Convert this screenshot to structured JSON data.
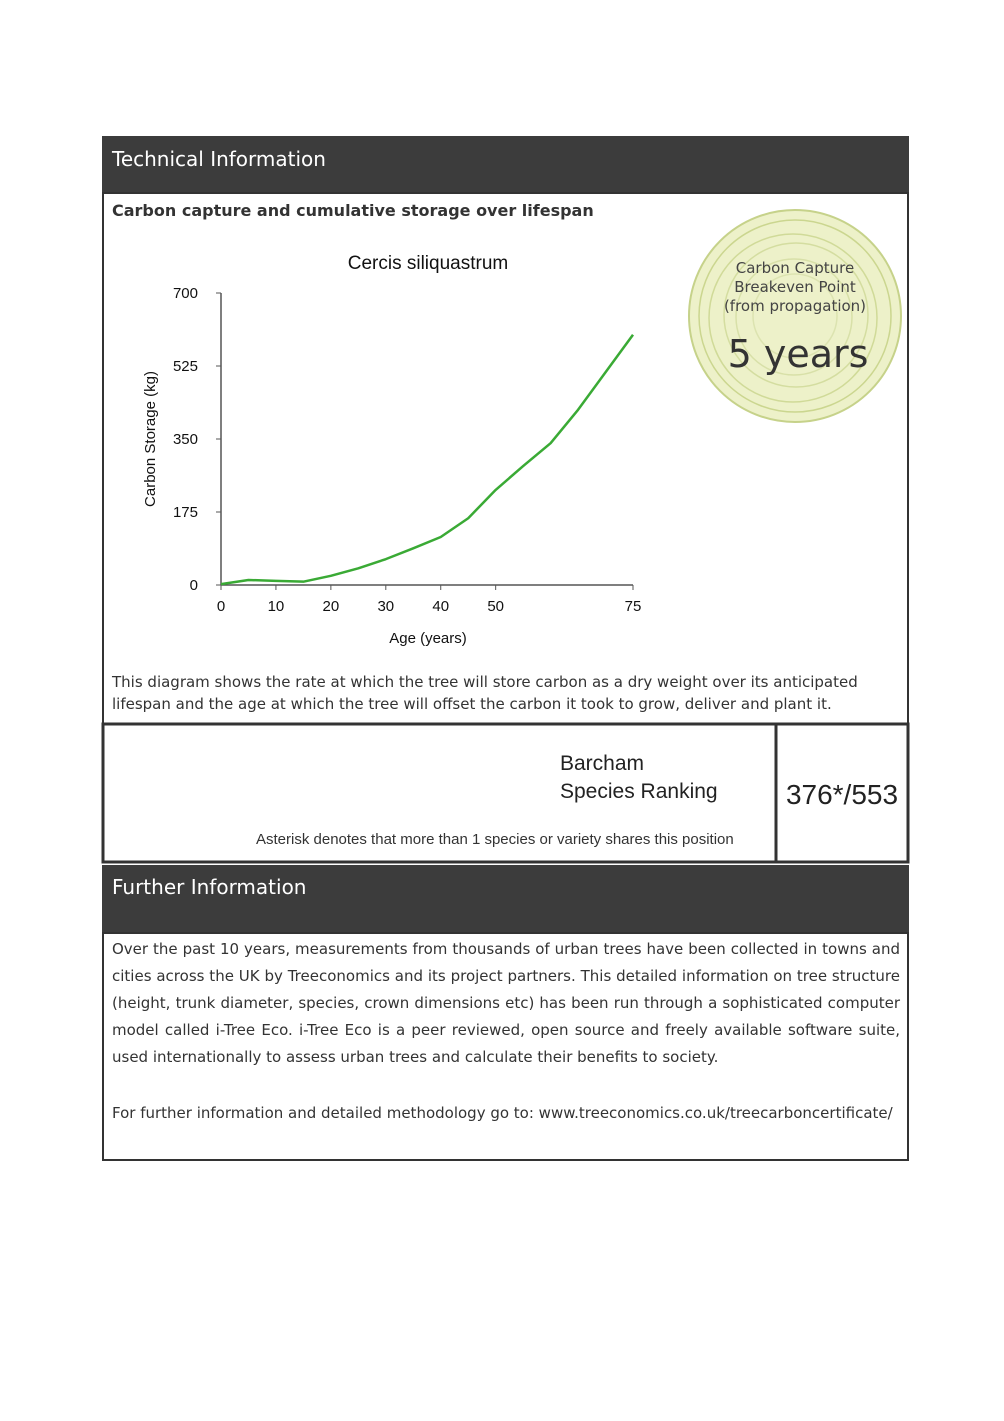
{
  "header": {
    "title": "Technical Information"
  },
  "subtitle": "Carbon capture and cumulative storage over lifespan",
  "chart_data": {
    "type": "line",
    "title": "Cercis siliquastrum",
    "x_label": "Age (years)",
    "y_label": "Carbon Storage (kg)",
    "x": [
      0,
      5,
      10,
      15,
      20,
      25,
      30,
      35,
      40,
      45,
      50,
      55,
      60,
      65,
      70,
      75
    ],
    "values": [
      2,
      12,
      10,
      8,
      22,
      40,
      62,
      88,
      115,
      160,
      228,
      285,
      340,
      420,
      510,
      600
    ],
    "color": "#3aaa35",
    "xlim": [
      0,
      75
    ],
    "xticks": [
      0,
      10,
      20,
      30,
      40,
      50,
      75
    ],
    "ylim": [
      0,
      700
    ],
    "yticks": [
      0,
      175,
      350,
      525,
      700
    ],
    "grid": false
  },
  "badge": {
    "label": [
      "Carbon Capture",
      "Breakeven Point",
      "(from propagation)"
    ],
    "value": "5 years"
  },
  "description": "This diagram shows the rate at which the tree will store carbon as a dry weight over its anticipated lifespan and the age at which the tree will offset the carbon it took to grow, deliver and plant it.",
  "ranking": {
    "label": [
      "Barcham",
      "Species Ranking"
    ],
    "value": "376*/553",
    "note": "Asterisk denotes that more than 1 species or variety shares this position"
  },
  "further": {
    "title": "Further Information",
    "paragraphs": [
      "Over the past 10 years, measurements from thousands of urban trees have been collected in towns and cities across the UK by Treeconomics and its project partners. This detailed information on tree structure (height, trunk diameter, species, crown dimensions etc) has been run through a sophisticated computer model called i-Tree Eco. i-Tree Eco is a peer reviewed, open source and freely available software suite, used internationally to assess urban trees and calculate their benefits to society.",
      "For further information and detailed methodology go to: www.treeconomics.co.uk/treecarboncertificate/"
    ]
  }
}
